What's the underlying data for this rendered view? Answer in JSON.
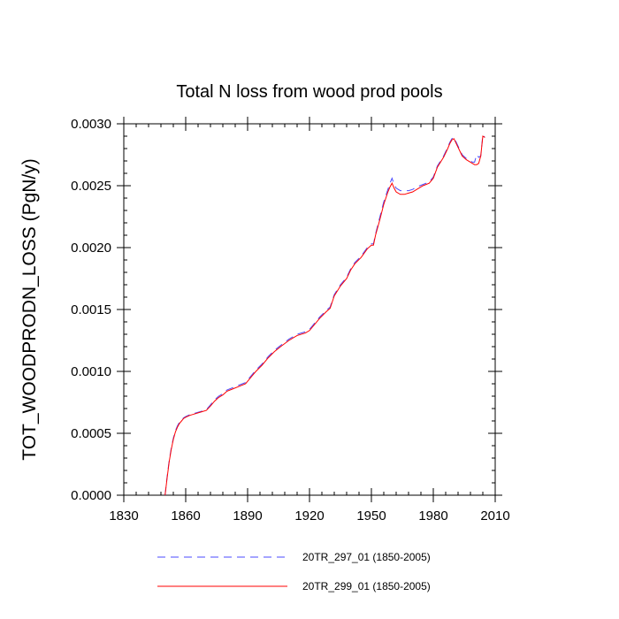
{
  "chart_data": {
    "type": "line",
    "title": "Total N loss from wood prod pools",
    "xlabel": "",
    "ylabel": "TOT_WOODPRODN_LOSS  (PgN/y)",
    "xlim": [
      1830,
      2010
    ],
    "ylim": [
      0,
      0.003
    ],
    "x_ticks": [
      1830,
      1860,
      1890,
      1920,
      1950,
      1980,
      2010
    ],
    "x_tick_labels": [
      "1830",
      "1860",
      "1890",
      "1920",
      "1950",
      "1980",
      "2010"
    ],
    "y_ticks": [
      0,
      0.0005,
      0.001,
      0.0015,
      0.002,
      0.0025,
      0.003
    ],
    "y_tick_labels": [
      "0.0000",
      "0.0005",
      "0.0010",
      "0.0015",
      "0.0020",
      "0.0025",
      "0.0030"
    ],
    "grid": false,
    "legend_position": "bottom",
    "series": [
      {
        "name": "20TR_297_01 (1850-2005)",
        "color": "#4b4bff",
        "dash": "dashed",
        "x": [
          1850,
          1851,
          1852,
          1853,
          1854,
          1855,
          1856,
          1857,
          1858,
          1859,
          1860,
          1862,
          1864,
          1866,
          1868,
          1870,
          1872,
          1874,
          1876,
          1878,
          1880,
          1883,
          1886,
          1889,
          1890,
          1892,
          1894,
          1897,
          1900,
          1903,
          1906,
          1910,
          1914,
          1918,
          1920,
          1922,
          1925,
          1928,
          1930,
          1932,
          1935,
          1938,
          1940,
          1942,
          1945,
          1948,
          1950,
          1951,
          1952,
          1954,
          1956,
          1958,
          1959,
          1960,
          1961,
          1962,
          1964,
          1966,
          1968,
          1970,
          1972,
          1975,
          1978,
          1980,
          1982,
          1985,
          1987,
          1988,
          1989,
          1990,
          1992,
          1994,
          1996,
          1998,
          1999,
          2000,
          2001,
          2002,
          2003,
          2004,
          2005
        ],
        "values": [
          0.0,
          0.00015,
          0.00028,
          0.00038,
          0.00046,
          0.00052,
          0.00056,
          0.00059,
          0.00061,
          0.000625,
          0.000635,
          0.00065,
          0.00066,
          0.00067,
          0.00068,
          0.00069,
          0.00073,
          0.00077,
          0.0008,
          0.00082,
          0.00085,
          0.00087,
          0.00089,
          0.00091,
          0.00093,
          0.00097,
          0.00101,
          0.00106,
          0.00112,
          0.00117,
          0.00121,
          0.00126,
          0.0013,
          0.00132,
          0.00134,
          0.00138,
          0.00144,
          0.00149,
          0.00152,
          0.00162,
          0.0017,
          0.00176,
          0.00183,
          0.00188,
          0.00193,
          0.002,
          0.00203,
          0.00203,
          0.00211,
          0.00224,
          0.00237,
          0.00247,
          0.00252,
          0.00256,
          0.00251,
          0.00248,
          0.00246,
          0.00246,
          0.00246,
          0.00247,
          0.00249,
          0.00251,
          0.00253,
          0.00257,
          0.00266,
          0.00274,
          0.00281,
          0.00285,
          0.00288,
          0.00289,
          0.00282,
          0.00275,
          0.00272,
          0.0027,
          0.00269,
          0.00269,
          0.00275,
          0.00273,
          0.00274,
          0.00291,
          0.00289
        ]
      },
      {
        "name": "20TR_299_01 (1850-2005)",
        "color": "#ff0000",
        "dash": "solid",
        "x": [
          1850,
          1851,
          1852,
          1853,
          1854,
          1855,
          1856,
          1857,
          1858,
          1859,
          1860,
          1862,
          1864,
          1866,
          1868,
          1870,
          1872,
          1874,
          1876,
          1878,
          1880,
          1883,
          1886,
          1889,
          1890,
          1892,
          1894,
          1897,
          1900,
          1903,
          1906,
          1910,
          1914,
          1918,
          1920,
          1922,
          1925,
          1928,
          1930,
          1932,
          1935,
          1938,
          1940,
          1942,
          1945,
          1948,
          1950,
          1951,
          1952,
          1954,
          1956,
          1958,
          1959,
          1960,
          1961,
          1962,
          1964,
          1966,
          1968,
          1970,
          1972,
          1975,
          1978,
          1980,
          1982,
          1985,
          1987,
          1988,
          1989,
          1990,
          1992,
          1994,
          1996,
          1998,
          1999,
          2000,
          2001,
          2002,
          2003,
          2004,
          2005
        ],
        "values": [
          0.0,
          0.00014,
          0.00027,
          0.00037,
          0.00045,
          0.00051,
          0.00055,
          0.00058,
          0.0006,
          0.00062,
          0.00063,
          0.000645,
          0.000655,
          0.000665,
          0.000675,
          0.000685,
          0.00072,
          0.00076,
          0.00079,
          0.00081,
          0.00084,
          0.00086,
          0.00088,
          0.0009,
          0.00092,
          0.00096,
          0.001,
          0.00105,
          0.00111,
          0.00116,
          0.0012,
          0.00125,
          0.00129,
          0.00131,
          0.00133,
          0.00137,
          0.00143,
          0.00148,
          0.00151,
          0.00161,
          0.00169,
          0.00175,
          0.00182,
          0.00187,
          0.00192,
          0.00199,
          0.00202,
          0.00202,
          0.0021,
          0.00222,
          0.00235,
          0.00245,
          0.00249,
          0.00252,
          0.00248,
          0.00245,
          0.00243,
          0.00243,
          0.00244,
          0.00245,
          0.00247,
          0.0025,
          0.00252,
          0.00256,
          0.00265,
          0.00273,
          0.0028,
          0.00284,
          0.00287,
          0.00288,
          0.00281,
          0.00274,
          0.00271,
          0.00269,
          0.00268,
          0.00267,
          0.00267,
          0.00268,
          0.00274,
          0.0029,
          0.00289
        ]
      }
    ]
  }
}
